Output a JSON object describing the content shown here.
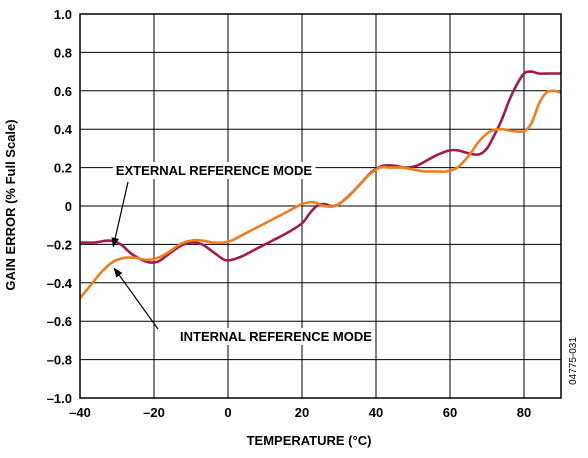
{
  "chart_data": {
    "type": "line",
    "xlabel": "TEMPERATURE (°C)",
    "ylabel": "GAIN ERROR (% Full Scale)",
    "xlim": [
      -40,
      90
    ],
    "ylim": [
      -1.0,
      1.0
    ],
    "grid": true,
    "x_ticks": [
      -40,
      -20,
      0,
      20,
      40,
      60,
      80
    ],
    "x_tick_labels": [
      "–40",
      "–20",
      "0",
      "20",
      "40",
      "60",
      "80"
    ],
    "y_ticks": [
      1.0,
      0.8,
      0.6,
      0.4,
      0.2,
      0,
      -0.2,
      -0.4,
      -0.6,
      -0.8,
      -1.0
    ],
    "y_tick_labels": [
      "1.0",
      "0.8",
      "0.6",
      "0.4",
      "0.2",
      "0",
      "–0.2",
      "–0.4",
      "–0.6",
      "–0.8",
      "–1.0"
    ],
    "annotations": [
      {
        "text": "EXTERNAL REFERENCE MODE",
        "points_to_series": 0,
        "x": -31,
        "y": -0.19
      },
      {
        "text": "INTERNAL REFERENCE MODE",
        "points_to_series": 1,
        "x": -31,
        "y": -0.33
      }
    ],
    "figure_id": "04775-031",
    "series": [
      {
        "color": "#a31a4b",
        "points": [
          [
            -40,
            -0.19
          ],
          [
            -36,
            -0.19
          ],
          [
            -32,
            -0.18
          ],
          [
            -29,
            -0.2
          ],
          [
            -26,
            -0.25
          ],
          [
            -22,
            -0.29
          ],
          [
            -19,
            -0.29
          ],
          [
            -16,
            -0.25
          ],
          [
            -13,
            -0.21
          ],
          [
            -10,
            -0.19
          ],
          [
            -7,
            -0.2
          ],
          [
            -4,
            -0.24
          ],
          [
            -1,
            -0.28
          ],
          [
            1,
            -0.28
          ],
          [
            4,
            -0.26
          ],
          [
            8,
            -0.22
          ],
          [
            12,
            -0.18
          ],
          [
            16,
            -0.14
          ],
          [
            20,
            -0.09
          ],
          [
            22,
            -0.04
          ],
          [
            24,
            0.0
          ],
          [
            26,
            0.01
          ],
          [
            28,
            0.0
          ],
          [
            30,
            0.01
          ],
          [
            33,
            0.06
          ],
          [
            36,
            0.12
          ],
          [
            39,
            0.18
          ],
          [
            42,
            0.21
          ],
          [
            45,
            0.21
          ],
          [
            48,
            0.2
          ],
          [
            51,
            0.21
          ],
          [
            54,
            0.24
          ],
          [
            57,
            0.27
          ],
          [
            60,
            0.29
          ],
          [
            62,
            0.29
          ],
          [
            64,
            0.28
          ],
          [
            66,
            0.27
          ],
          [
            68,
            0.27
          ],
          [
            70,
            0.3
          ],
          [
            72,
            0.37
          ],
          [
            74,
            0.45
          ],
          [
            76,
            0.55
          ],
          [
            78,
            0.63
          ],
          [
            80,
            0.69
          ],
          [
            82,
            0.7
          ],
          [
            84,
            0.69
          ],
          [
            87,
            0.69
          ],
          [
            90,
            0.69
          ]
        ]
      },
      {
        "color": "#f07d1f",
        "points": [
          [
            -40,
            -0.48
          ],
          [
            -37,
            -0.41
          ],
          [
            -34,
            -0.34
          ],
          [
            -31,
            -0.29
          ],
          [
            -28,
            -0.27
          ],
          [
            -25,
            -0.27
          ],
          [
            -22,
            -0.28
          ],
          [
            -19,
            -0.27
          ],
          [
            -16,
            -0.24
          ],
          [
            -13,
            -0.2
          ],
          [
            -10,
            -0.18
          ],
          [
            -7,
            -0.18
          ],
          [
            -4,
            -0.19
          ],
          [
            -1,
            -0.19
          ],
          [
            1,
            -0.18
          ],
          [
            4,
            -0.15
          ],
          [
            8,
            -0.11
          ],
          [
            12,
            -0.07
          ],
          [
            16,
            -0.03
          ],
          [
            20,
            0.01
          ],
          [
            23,
            0.02
          ],
          [
            26,
            0.0
          ],
          [
            29,
            0.0
          ],
          [
            32,
            0.04
          ],
          [
            35,
            0.1
          ],
          [
            38,
            0.16
          ],
          [
            41,
            0.2
          ],
          [
            44,
            0.2
          ],
          [
            47,
            0.2
          ],
          [
            50,
            0.19
          ],
          [
            53,
            0.18
          ],
          [
            56,
            0.18
          ],
          [
            59,
            0.18
          ],
          [
            62,
            0.2
          ],
          [
            65,
            0.26
          ],
          [
            68,
            0.34
          ],
          [
            71,
            0.39
          ],
          [
            74,
            0.4
          ],
          [
            77,
            0.39
          ],
          [
            80,
            0.39
          ],
          [
            82,
            0.43
          ],
          [
            84,
            0.53
          ],
          [
            86,
            0.59
          ],
          [
            88,
            0.6
          ],
          [
            90,
            0.59
          ]
        ]
      }
    ]
  }
}
